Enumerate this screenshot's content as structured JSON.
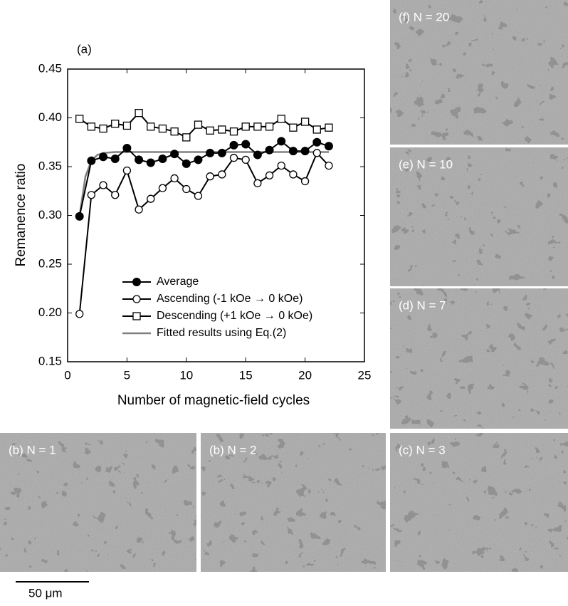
{
  "chart_data": {
    "type": "line",
    "annotation": "(a)",
    "xlabel": "Number of magnetic-field cycles",
    "ylabel": "Remanence ratio",
    "xlim": [
      0,
      25
    ],
    "xticks": [
      0,
      5,
      10,
      15,
      20,
      25
    ],
    "ylim": [
      0.15,
      0.45
    ],
    "yticks": [
      0.15,
      {
        "value": 0.2,
        "label": "0.20"
      },
      0.25,
      {
        "value": 0.3,
        "label": "0.30"
      },
      0.35,
      {
        "value": 0.4,
        "label": "0.40"
      },
      0.45
    ],
    "x": [
      1,
      2,
      3,
      4,
      5,
      6,
      7,
      8,
      9,
      10,
      11,
      12,
      13,
      14,
      15,
      16,
      17,
      18,
      19,
      20,
      21,
      22
    ],
    "legend": "lower right",
    "series": [
      {
        "name": "Average",
        "color": "#000000",
        "marker": "filled-circle",
        "values": [
          0.299,
          0.356,
          0.36,
          0.358,
          0.369,
          0.357,
          0.354,
          0.358,
          0.363,
          0.353,
          0.357,
          0.364,
          0.364,
          0.372,
          0.373,
          0.362,
          0.367,
          0.376,
          0.366,
          0.366,
          0.375,
          0.371
        ]
      },
      {
        "name": "Ascending (-1 kOe → 0 kOe)",
        "color": "#000000",
        "marker": "open-circle",
        "values": [
          0.199,
          0.321,
          0.331,
          0.321,
          0.346,
          0.306,
          0.317,
          0.328,
          0.338,
          0.327,
          0.32,
          0.34,
          0.342,
          0.359,
          0.357,
          0.333,
          0.341,
          0.351,
          0.342,
          0.335,
          0.364,
          0.351
        ]
      },
      {
        "name": "Descending (+1 kOe → 0 kOe)",
        "color": "#000000",
        "marker": "open-square",
        "values": [
          0.399,
          0.391,
          0.389,
          0.394,
          0.392,
          0.405,
          0.391,
          0.389,
          0.386,
          0.38,
          0.393,
          0.387,
          0.388,
          0.386,
          0.391,
          0.391,
          0.391,
          0.399,
          0.39,
          0.396,
          0.388,
          0.39
        ]
      },
      {
        "name": "Fitted results using Eq.(2)",
        "color": "#808080",
        "marker": "none",
        "x": [
          1,
          1.5,
          2,
          2.5,
          3,
          4,
          22
        ],
        "values": [
          0.299,
          0.34,
          0.356,
          0.362,
          0.364,
          0.365,
          0.365
        ]
      }
    ]
  },
  "images": [
    {
      "label": "(f) N = 20"
    },
    {
      "label": "(e) N = 10"
    },
    {
      "label": "(d) N = 7"
    },
    {
      "label": "(b) N = 1"
    },
    {
      "label": "(b) N = 2"
    },
    {
      "label": "(c) N = 3"
    }
  ],
  "scale_bar": "50 μm"
}
